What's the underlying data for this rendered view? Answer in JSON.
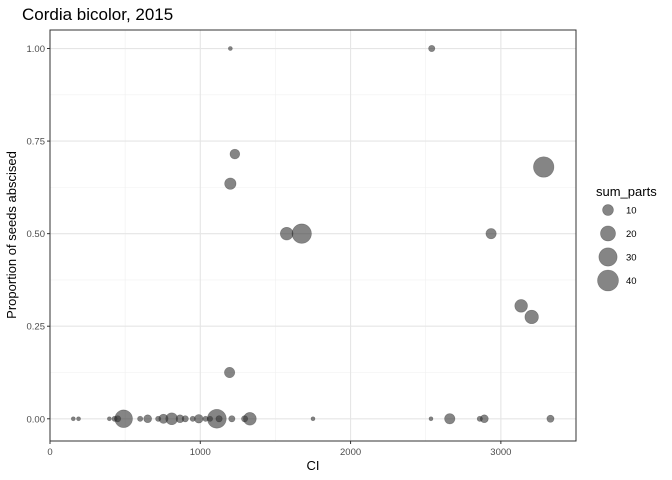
{
  "chart_data": {
    "type": "scatter",
    "title": "Cordia bicolor, 2015",
    "xlabel": "CI",
    "ylabel": "Proportion of seeds abscised",
    "xlim": [
      0,
      3500
    ],
    "ylim": [
      -0.06,
      1.05
    ],
    "x_ticks": [
      0,
      1000,
      2000,
      3000
    ],
    "x_tick_labels": [
      "0",
      "1000",
      "2000",
      "3000"
    ],
    "y_ticks": [
      0,
      0.25,
      0.5,
      0.75,
      1.0
    ],
    "y_tick_labels": [
      "0.00",
      "0.25",
      "0.50",
      "0.75",
      "1.00"
    ],
    "grid": true,
    "point_color": "#333333",
    "point_alpha": 0.6,
    "size_variable": "sum_parts",
    "legend": {
      "title": "sum_parts",
      "position": "right",
      "entries": [
        {
          "label": "10",
          "value": 10
        },
        {
          "label": "20",
          "value": 20
        },
        {
          "label": "30",
          "value": 30
        },
        {
          "label": "40",
          "value": 40
        }
      ]
    },
    "points": [
      {
        "x": 1200,
        "y": 1.0,
        "size": 1
      },
      {
        "x": 2540,
        "y": 1.0,
        "size": 3
      },
      {
        "x": 1230,
        "y": 0.715,
        "size": 8
      },
      {
        "x": 1200,
        "y": 0.635,
        "size": 11
      },
      {
        "x": 3285,
        "y": 0.68,
        "size": 38
      },
      {
        "x": 1575,
        "y": 0.5,
        "size": 14
      },
      {
        "x": 1675,
        "y": 0.5,
        "size": 34
      },
      {
        "x": 2935,
        "y": 0.5,
        "size": 9
      },
      {
        "x": 3135,
        "y": 0.305,
        "size": 14
      },
      {
        "x": 3205,
        "y": 0.275,
        "size": 16
      },
      {
        "x": 1195,
        "y": 0.125,
        "size": 9
      },
      {
        "x": 155,
        "y": 0.0,
        "size": 1
      },
      {
        "x": 190,
        "y": 0.0,
        "size": 1
      },
      {
        "x": 395,
        "y": 0.0,
        "size": 1
      },
      {
        "x": 430,
        "y": 0.0,
        "size": 2
      },
      {
        "x": 450,
        "y": 0.0,
        "size": 3
      },
      {
        "x": 490,
        "y": 0.0,
        "size": 28
      },
      {
        "x": 600,
        "y": 0.0,
        "size": 2
      },
      {
        "x": 650,
        "y": 0.0,
        "size": 5
      },
      {
        "x": 720,
        "y": 0.0,
        "size": 2
      },
      {
        "x": 755,
        "y": 0.0,
        "size": 7
      },
      {
        "x": 810,
        "y": 0.0,
        "size": 12
      },
      {
        "x": 865,
        "y": 0.0,
        "size": 5
      },
      {
        "x": 900,
        "y": 0.0,
        "size": 3
      },
      {
        "x": 950,
        "y": 0.0,
        "size": 2
      },
      {
        "x": 990,
        "y": 0.0,
        "size": 6
      },
      {
        "x": 1035,
        "y": 0.0,
        "size": 2
      },
      {
        "x": 1065,
        "y": 0.0,
        "size": 2
      },
      {
        "x": 1110,
        "y": 0.0,
        "size": 32
      },
      {
        "x": 1125,
        "y": 0.0,
        "size": 3
      },
      {
        "x": 1210,
        "y": 0.0,
        "size": 3
      },
      {
        "x": 1295,
        "y": 0.0,
        "size": 3
      },
      {
        "x": 1330,
        "y": 0.0,
        "size": 14
      },
      {
        "x": 1750,
        "y": 0.0,
        "size": 1
      },
      {
        "x": 2535,
        "y": 0.0,
        "size": 1
      },
      {
        "x": 2660,
        "y": 0.0,
        "size": 9
      },
      {
        "x": 2860,
        "y": 0.0,
        "size": 2
      },
      {
        "x": 2890,
        "y": 0.0,
        "size": 5
      },
      {
        "x": 3330,
        "y": 0.0,
        "size": 4
      }
    ]
  }
}
